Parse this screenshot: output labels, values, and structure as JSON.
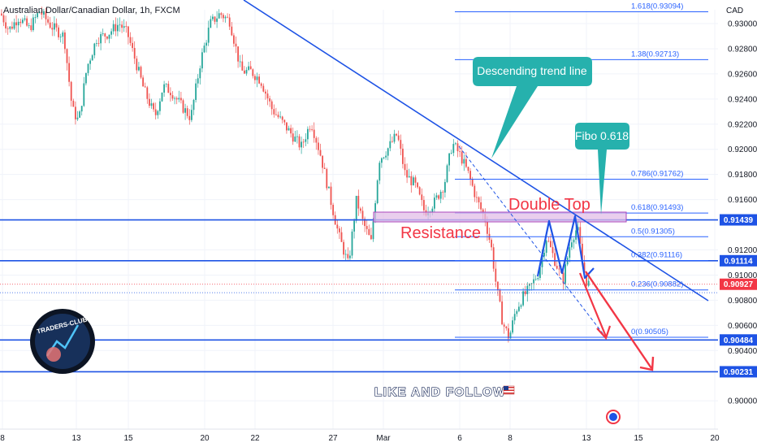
{
  "symbol": "Australian Dollar/Canadian Dollar, 1h, FXCM",
  "currency": "CAD",
  "colors": {
    "up": "#26a69a",
    "down": "#ef5350",
    "blue": "#1e53e5",
    "fib": "#2962ff",
    "teal": "#26b1ad",
    "red": "#f23645",
    "zone": "#e1bee7"
  },
  "chart_data": {
    "type": "candlestick",
    "ylim": [
      0.8993,
      0.9311
    ],
    "price_ticks": [
      "0.93000",
      "0.92800",
      "0.92600",
      "0.92400",
      "0.92200",
      "0.92000",
      "0.91800",
      "0.91600",
      "0.91200",
      "0.91000",
      "0.90800",
      "0.90600",
      "0.90400",
      "0.90000"
    ],
    "date_ticks": [
      "8",
      "13",
      "15",
      "20",
      "22",
      "27",
      "Mar",
      "6",
      "8",
      "13",
      "15",
      "20"
    ],
    "fib_levels": [
      {
        "label": "1.618(0.93094)",
        "price": 0.93094
      },
      {
        "label": "1.38(0.92713)",
        "price": 0.92713
      },
      {
        "label": "0.786(0.91762)",
        "price": 0.91762
      },
      {
        "label": "0.618(0.91493)",
        "price": 0.91493
      },
      {
        "label": "0.5(0.91305)",
        "price": 0.91305
      },
      {
        "label": "0.382(0.91116)",
        "price": 0.91116
      },
      {
        "label": "0.236(0.90882)",
        "price": 0.90882
      },
      {
        "label": "0(0.90505)",
        "price": 0.90505
      }
    ],
    "price_tags": [
      {
        "label": "0.91439",
        "price": 0.91439,
        "color": "#1e53e5"
      },
      {
        "label": "0.91114",
        "price": 0.91114,
        "color": "#1e53e5"
      },
      {
        "label": "0.90927",
        "price": 0.90927,
        "color": "#f23645"
      },
      {
        "label": "0.90484",
        "price": 0.90484,
        "color": "#1e53e5"
      },
      {
        "label": "0.90231",
        "price": 0.90231,
        "color": "#1e53e5"
      }
    ],
    "horizontal_levels": [
      0.91439,
      0.91114,
      0.90484,
      0.90231
    ],
    "last_price": 0.90927,
    "resistance_zone": [
      0.91439,
      0.9151
    ],
    "annotations": {
      "trend_line": "Descending trend line",
      "fibo": "Fibo 0.618",
      "double_top": "Double Top",
      "resistance": "Resistance",
      "cta": "LIKE AND FOLLOW"
    },
    "logo_text": "TRADERS-CLUB"
  }
}
